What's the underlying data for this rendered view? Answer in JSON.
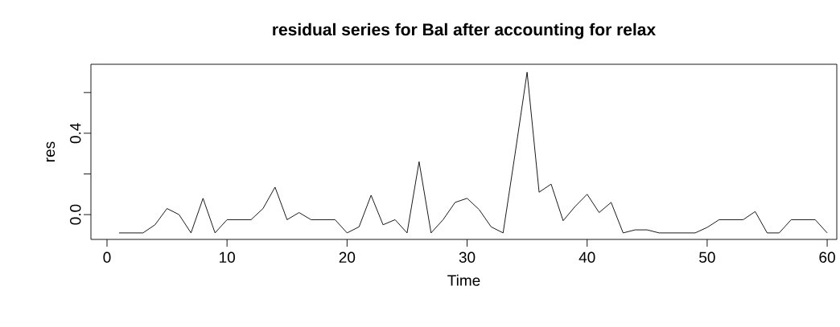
{
  "chart_data": {
    "type": "line",
    "title": "residual series for Bal after accounting for relax",
    "xlabel": "Time",
    "ylabel": "res",
    "x": [
      1,
      2,
      3,
      4,
      5,
      6,
      7,
      8,
      9,
      10,
      11,
      12,
      13,
      14,
      15,
      16,
      17,
      18,
      19,
      20,
      21,
      22,
      23,
      24,
      25,
      26,
      27,
      28,
      29,
      30,
      31,
      32,
      33,
      34,
      35,
      36,
      37,
      38,
      39,
      40,
      41,
      42,
      43,
      44,
      45,
      46,
      47,
      48,
      49,
      50,
      51,
      52,
      53,
      54,
      55,
      56,
      57,
      58,
      59,
      60
    ],
    "series": [
      {
        "color": "#000000",
        "values": [
          -0.09,
          -0.09,
          -0.09,
          -0.05,
          0.03,
          0.0,
          -0.09,
          0.08,
          -0.09,
          -0.025,
          -0.025,
          -0.025,
          0.03,
          0.135,
          -0.025,
          0.01,
          -0.025,
          -0.025,
          -0.025,
          -0.09,
          -0.06,
          0.095,
          -0.05,
          -0.025,
          -0.09,
          0.26,
          -0.09,
          -0.025,
          0.06,
          0.08,
          0.025,
          -0.06,
          -0.09,
          0.3,
          0.7,
          0.11,
          0.15,
          -0.03,
          0.04,
          0.1,
          0.01,
          0.06,
          -0.09,
          -0.075,
          -0.075,
          -0.09,
          -0.09,
          -0.09,
          -0.09,
          -0.063,
          -0.025,
          -0.025,
          -0.025,
          0.015,
          -0.09,
          -0.09,
          -0.025,
          -0.025,
          -0.025,
          -0.09
        ]
      }
    ],
    "xlim": [
      -1.34,
      60.8
    ],
    "ylim": [
      -0.122,
      0.739
    ],
    "xticks": [
      0,
      10,
      20,
      30,
      40,
      50,
      60
    ],
    "yticks": [
      {
        "value": 0,
        "label": "0.0"
      },
      {
        "value": 0.2,
        "label": null
      },
      {
        "value": 0.4,
        "label": "0.4"
      },
      {
        "value": 0.6,
        "label": null
      }
    ],
    "grid": false,
    "marker": "none",
    "line_style": "solid"
  }
}
